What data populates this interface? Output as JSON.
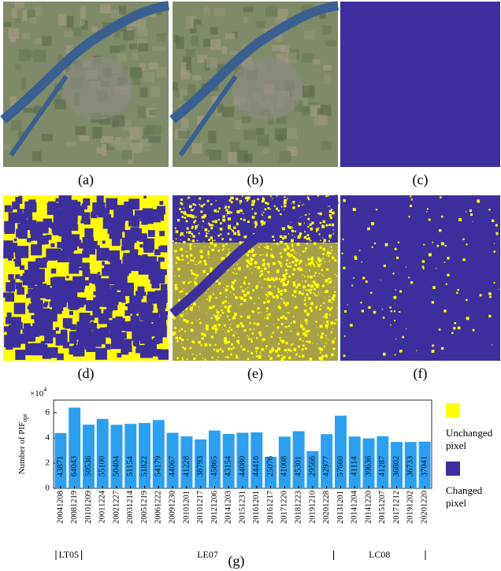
{
  "panel_captions": [
    "(a)",
    "(b)",
    "(c)",
    "(d)",
    "(e)",
    "(f)"
  ],
  "legend": {
    "items": [
      {
        "name": "Unchanged pixel",
        "color": "#ffff00"
      },
      {
        "name": "Changed pixel",
        "color": "#3d2f9e"
      }
    ]
  },
  "chart_data": {
    "type": "bar",
    "caption": "(g)",
    "y_label": "Number of PIF",
    "y_label_subscript": "opt",
    "multiplier_base": "×10",
    "multiplier_exponent": "4",
    "categories": [
      "20041208",
      "20081219",
      "20101209",
      "20011224",
      "20021227",
      "20031214",
      "20051219",
      "20061222",
      "20091230",
      "20101201",
      "20101217",
      "20121206",
      "20141203",
      "20151231",
      "20161201",
      "20161217",
      "20171220",
      "20181223",
      "20191210",
      "20201228",
      "20131201",
      "20141204",
      "20141220",
      "20151207",
      "20171212",
      "20191202",
      "20201220"
    ],
    "values": [
      43871,
      64043,
      50536,
      55100,
      50404,
      51154,
      51822,
      54179,
      44067,
      41228,
      38793,
      45865,
      43154,
      44080,
      44416,
      25076,
      41008,
      45301,
      29566,
      42977,
      57660,
      41114,
      39636,
      41287,
      36802,
      36733,
      37041
    ],
    "color": "#2b9ff2",
    "ylim": [
      0,
      70000
    ],
    "yticks": [
      {
        "value": 0,
        "label": "0"
      },
      {
        "value": 20000,
        "label": "2"
      },
      {
        "value": 40000,
        "label": "4"
      },
      {
        "value": 60000,
        "label": "6"
      }
    ],
    "groups": [
      {
        "name": "LT05"
      },
      {
        "name": "LE07"
      },
      {
        "name": "LC08"
      }
    ]
  }
}
